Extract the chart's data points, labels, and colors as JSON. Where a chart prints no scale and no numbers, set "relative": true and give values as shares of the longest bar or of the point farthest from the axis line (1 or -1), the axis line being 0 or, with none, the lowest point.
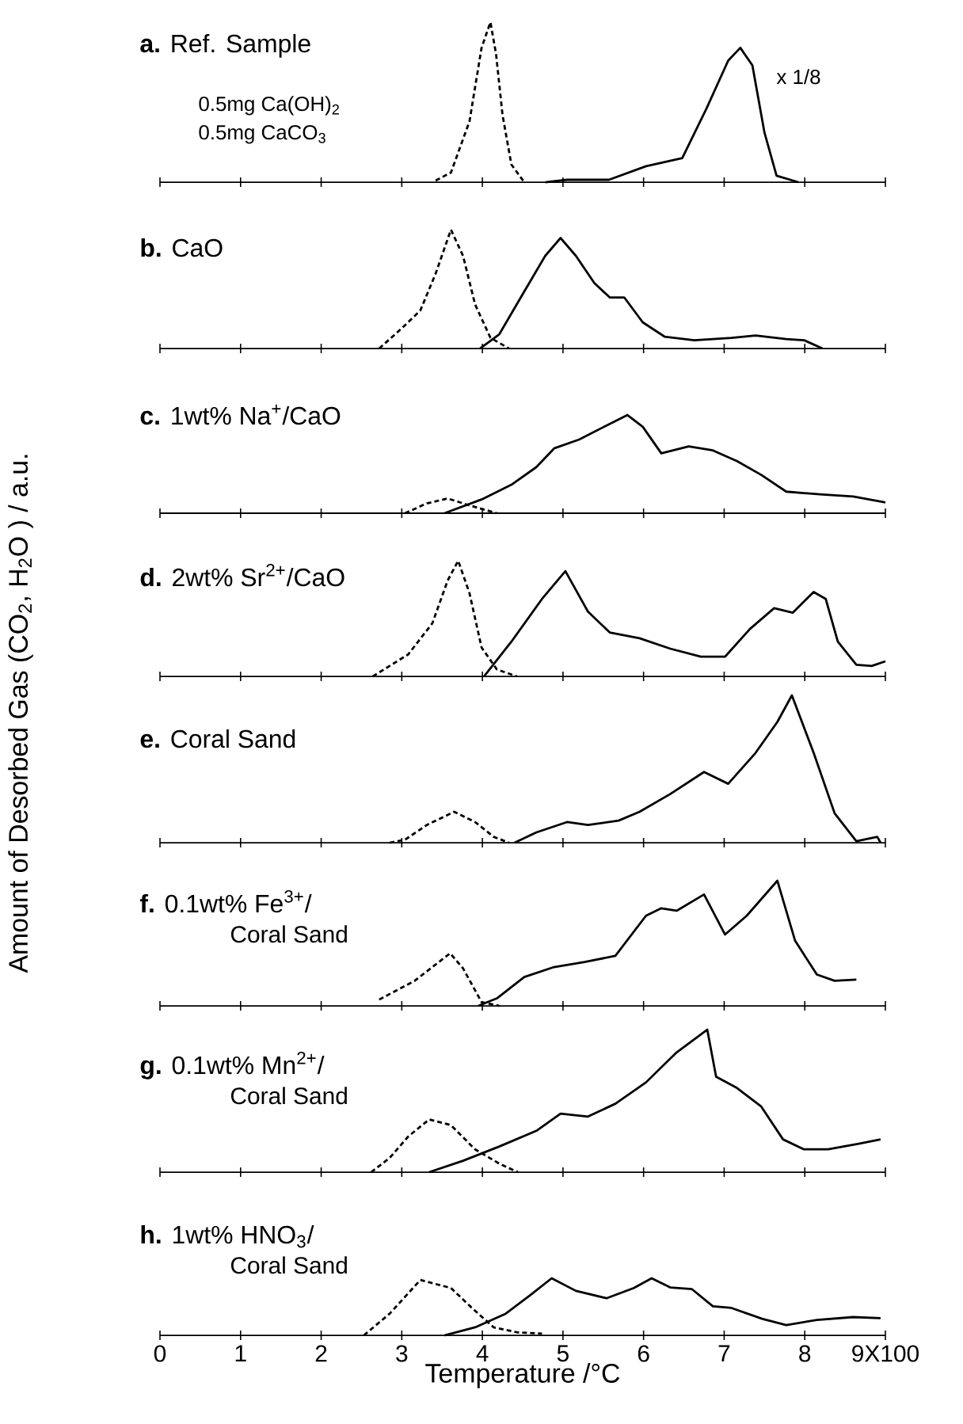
{
  "chart_data": [
    {
      "type": "line",
      "title": "**a.** Ref. Sample",
      "annotations": [
        "0.5mg Ca(OH)$_{2}$",
        "0.5mg CaCO$_{3}$",
        "x 1/8"
      ],
      "relative": true,
      "xlim": [
        0,
        9
      ],
      "xticks": [
        0,
        1,
        2,
        3,
        4,
        5,
        6,
        7,
        8,
        9
      ],
      "tick_labels": false,
      "series": [
        {
          "color": "#000000",
          "line_style": "dashed",
          "x": [
            3.42,
            3.61,
            3.84,
            3.99,
            4.1,
            4.17,
            4.25,
            4.36,
            4.52
          ],
          "values": [
            0.01,
            0.06,
            0.38,
            0.84,
            1,
            0.8,
            0.42,
            0.11,
            0
          ]
        },
        {
          "color": "#000000",
          "line_style": "solid",
          "x": [
            4.78,
            5.05,
            5.57,
            6.03,
            6.48,
            6.78,
            7.05,
            7.2,
            7.35,
            7.5,
            7.65,
            7.92
          ],
          "values": [
            0,
            0.015,
            0.015,
            0.1,
            0.15,
            0.46,
            0.76,
            0.84,
            0.73,
            0.31,
            0.04,
            0
          ]
        }
      ]
    },
    {
      "type": "line",
      "title": "**b.** CaO",
      "relative": true,
      "xlim": [
        0,
        9
      ],
      "xticks": [
        0,
        1,
        2,
        3,
        4,
        5,
        6,
        7,
        8,
        9
      ],
      "tick_labels": false,
      "series": [
        {
          "color": "#000000",
          "line_style": "dashed",
          "x": [
            2.72,
            3.0,
            3.23,
            3.42,
            3.61,
            3.76,
            3.91,
            4.1,
            4.33
          ],
          "values": [
            0,
            0.17,
            0.32,
            0.63,
            1,
            0.78,
            0.37,
            0.09,
            0
          ]
        },
        {
          "color": "#000000",
          "line_style": "solid",
          "x": [
            3.97,
            4.21,
            4.52,
            4.78,
            4.97,
            5.16,
            5.39,
            5.58,
            5.76,
            5.99,
            6.26,
            6.63,
            7.09,
            7.39,
            7.77,
            7.99,
            8.22
          ],
          "values": [
            0,
            0.12,
            0.48,
            0.78,
            0.93,
            0.78,
            0.55,
            0.43,
            0.43,
            0.22,
            0.1,
            0.07,
            0.09,
            0.11,
            0.08,
            0.07,
            0
          ]
        }
      ]
    },
    {
      "type": "line",
      "title": "**c.** 1wt% Na$^{+}$/CaO",
      "relative": true,
      "xlim": [
        0,
        9
      ],
      "xticks": [
        0,
        1,
        2,
        3,
        4,
        5,
        6,
        7,
        8,
        9
      ],
      "tick_labels": false,
      "series": [
        {
          "color": "#000000",
          "line_style": "dashed",
          "x": [
            3.04,
            3.31,
            3.57,
            3.84,
            4.18
          ],
          "values": [
            0,
            0.1,
            0.15,
            0.08,
            0
          ]
        },
        {
          "color": "#000000",
          "line_style": "solid",
          "x": [
            3.53,
            3.99,
            4.36,
            4.67,
            4.89,
            5.2,
            5.58,
            5.8,
            5.99,
            6.22,
            6.56,
            6.86,
            7.16,
            7.46,
            7.77,
            8.22,
            8.6,
            9.0
          ],
          "values": [
            0,
            0.14,
            0.29,
            0.47,
            0.66,
            0.75,
            0.91,
            1,
            0.88,
            0.61,
            0.68,
            0.64,
            0.53,
            0.39,
            0.22,
            0.19,
            0.17,
            0.11
          ]
        }
      ]
    },
    {
      "type": "line",
      "title": "**d.** 2wt% Sr$^{2+}$/CaO",
      "relative": true,
      "xlim": [
        0,
        9
      ],
      "xticks": [
        0,
        1,
        2,
        3,
        4,
        5,
        6,
        7,
        8,
        9
      ],
      "tick_labels": false,
      "series": [
        {
          "color": "#000000",
          "line_style": "dashed",
          "x": [
            2.64,
            3.08,
            3.38,
            3.57,
            3.7,
            3.84,
            3.99,
            4.18,
            4.43
          ],
          "values": [
            0,
            0.19,
            0.46,
            0.83,
            1,
            0.72,
            0.25,
            0.06,
            0
          ]
        },
        {
          "color": "#000000",
          "line_style": "solid",
          "x": [
            4.02,
            4.36,
            4.74,
            5.03,
            5.31,
            5.58,
            5.95,
            6.33,
            6.71,
            7.01,
            7.32,
            7.62,
            7.85,
            8.11,
            8.26,
            8.41,
            8.64,
            8.83,
            9.0
          ],
          "values": [
            0,
            0.3,
            0.67,
            0.91,
            0.56,
            0.38,
            0.33,
            0.24,
            0.17,
            0.17,
            0.41,
            0.59,
            0.55,
            0.73,
            0.67,
            0.3,
            0.1,
            0.09,
            0.13
          ]
        }
      ]
    },
    {
      "type": "line",
      "title": "**e.** Coral Sand",
      "ylabel": "Amount of Desorbed Gas (CO$_{2}$, H$_{2}$O ) / a.u.",
      "relative": true,
      "xlim": [
        0,
        9
      ],
      "xticks": [
        0,
        1,
        2,
        3,
        4,
        5,
        6,
        7,
        8,
        9
      ],
      "tick_labels": false,
      "series": [
        {
          "color": "#000000",
          "line_style": "dashed",
          "x": [
            2.85,
            3.04,
            3.31,
            3.65,
            3.91,
            4.14,
            4.33
          ],
          "values": [
            0,
            0.02,
            0.12,
            0.21,
            0.14,
            0.04,
            0
          ]
        },
        {
          "color": "#000000",
          "line_style": "solid",
          "x": [
            4.4,
            4.67,
            5.05,
            5.31,
            5.69,
            5.95,
            6.33,
            6.75,
            7.05,
            7.39,
            7.66,
            7.84,
            8.11,
            8.37,
            8.64,
            8.9,
            8.94
          ],
          "values": [
            0,
            0.07,
            0.14,
            0.12,
            0.15,
            0.21,
            0.33,
            0.48,
            0.4,
            0.61,
            0.82,
            1,
            0.61,
            0.2,
            0.01,
            0.04,
            0
          ]
        }
      ]
    },
    {
      "type": "line",
      "title": "**f.** 0.1wt% Fe$^{3+}$/",
      "subtitle": "Coral Sand",
      "relative": true,
      "xlim": [
        0,
        9
      ],
      "xticks": [
        0,
        1,
        2,
        3,
        4,
        5,
        6,
        7,
        8,
        9
      ],
      "tick_labels": false,
      "series": [
        {
          "color": "#000000",
          "line_style": "dashed",
          "x": [
            2.72,
            3.16,
            3.6,
            3.76,
            3.99,
            4.21
          ],
          "values": [
            0.05,
            0.2,
            0.42,
            0.3,
            0.03,
            0
          ]
        },
        {
          "color": "#000000",
          "line_style": "solid",
          "x": [
            3.95,
            4.18,
            4.52,
            4.89,
            5.27,
            5.65,
            6.03,
            6.22,
            6.41,
            6.75,
            7.01,
            7.28,
            7.66,
            7.88,
            8.15,
            8.37,
            8.64
          ],
          "values": [
            0,
            0.06,
            0.23,
            0.31,
            0.35,
            0.4,
            0.72,
            0.78,
            0.76,
            0.89,
            0.57,
            0.72,
            1,
            0.52,
            0.25,
            0.2,
            0.21
          ]
        }
      ]
    },
    {
      "type": "line",
      "title": "**g.** 0.1wt% Mn$^{2+}$/",
      "subtitle": "Coral Sand",
      "relative": true,
      "xlim": [
        0,
        9
      ],
      "xticks": [
        0,
        1,
        2,
        3,
        4,
        5,
        6,
        7,
        8,
        9
      ],
      "tick_labels": false,
      "series": [
        {
          "color": "#000000",
          "line_style": "dashed",
          "x": [
            2.62,
            2.85,
            3.08,
            3.34,
            3.61,
            3.91,
            4.21,
            4.44
          ],
          "values": [
            0,
            0.1,
            0.25,
            0.37,
            0.33,
            0.16,
            0.06,
            0
          ]
        },
        {
          "color": "#000000",
          "line_style": "solid",
          "x": [
            3.34,
            3.76,
            4.21,
            4.67,
            4.97,
            5.31,
            5.65,
            6.03,
            6.41,
            6.79,
            6.9,
            7.16,
            7.46,
            7.73,
            7.99,
            8.29,
            8.67,
            8.94
          ],
          "values": [
            0,
            0.08,
            0.18,
            0.29,
            0.41,
            0.39,
            0.48,
            0.63,
            0.84,
            1,
            0.67,
            0.59,
            0.46,
            0.23,
            0.16,
            0.16,
            0.2,
            0.23
          ]
        }
      ]
    },
    {
      "type": "line",
      "title": "**h.** 1wt% HNO$_{3}$/",
      "subtitle": "Coral Sand",
      "xlabel": "Temperature /°C",
      "relative": true,
      "xlim": [
        0,
        9
      ],
      "xticks": [
        0,
        1,
        2,
        3,
        4,
        5,
        6,
        7,
        8,
        {
          "value": 9,
          "label": "9X100"
        }
      ],
      "tick_labels": "x",
      "series": [
        {
          "color": "#000000",
          "line_style": "dashed",
          "x": [
            2.53,
            2.85,
            3.23,
            3.61,
            3.87,
            4.14,
            4.44,
            4.74
          ],
          "values": [
            0,
            0.38,
            0.97,
            0.83,
            0.48,
            0.14,
            0.05,
            0.03
          ]
        },
        {
          "color": "#000000",
          "line_style": "solid",
          "x": [
            3.53,
            3.91,
            4.29,
            4.59,
            4.86,
            5.16,
            5.54,
            5.88,
            6.1,
            6.33,
            6.6,
            6.86,
            7.09,
            7.47,
            7.77,
            8.15,
            8.6,
            8.94
          ],
          "values": [
            0,
            0.14,
            0.38,
            0.7,
            1,
            0.78,
            0.65,
            0.83,
            1,
            0.84,
            0.81,
            0.51,
            0.48,
            0.29,
            0.18,
            0.27,
            0.32,
            0.3
          ]
        }
      ]
    }
  ]
}
